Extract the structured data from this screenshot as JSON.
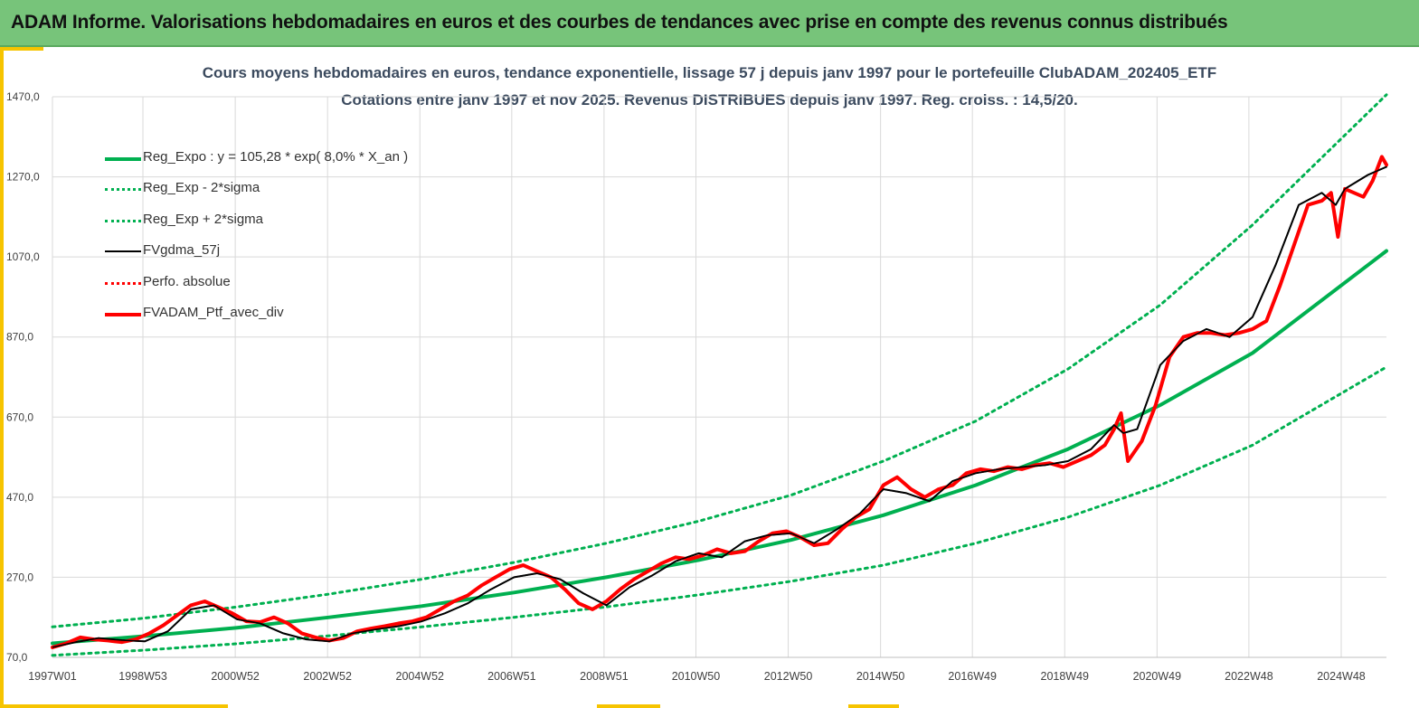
{
  "header": {
    "title": "ADAM Informe. Valorisations hebdomadaires en euros et des courbes de tendances avec prise en compte des revenus connus distribués"
  },
  "colors": {
    "banner": "#77c47a",
    "accent": "#f6c400",
    "green": "#00b050",
    "red": "#ff0000",
    "black": "#000000"
  },
  "chart_data": {
    "type": "line",
    "title": "Cours moyens hebdomadaires  en euros, tendance exponentielle, lissage 57 j depuis janv 1997 pour le portefeuille ClubADAM_202405_ETF",
    "subtitle": "Cotations  entre janv 1997 et nov 2025. Revenus DISTRIBUES depuis janv 1997. Reg. croiss. : 14,5/20.",
    "ylim": [
      70,
      1470
    ],
    "yticks": [
      "70,0",
      "270,0",
      "470,0",
      "670,0",
      "870,0",
      "1070,0",
      "1270,0",
      "1470,0"
    ],
    "xlim": [
      1997.0,
      2025.9
    ],
    "xticks": [
      {
        "x": 1997.0,
        "label": "1997W01"
      },
      {
        "x": 1998.96,
        "label": "1998W53"
      },
      {
        "x": 2000.96,
        "label": "2000W52"
      },
      {
        "x": 2002.96,
        "label": "2002W52"
      },
      {
        "x": 2004.96,
        "label": "2004W52"
      },
      {
        "x": 2006.95,
        "label": "2006W51"
      },
      {
        "x": 2008.95,
        "label": "2008W51"
      },
      {
        "x": 2010.94,
        "label": "2010W50"
      },
      {
        "x": 2012.94,
        "label": "2012W50"
      },
      {
        "x": 2014.94,
        "label": "2014W50"
      },
      {
        "x": 2016.93,
        "label": "2016W49"
      },
      {
        "x": 2018.93,
        "label": "2018W49"
      },
      {
        "x": 2020.93,
        "label": "2020W49"
      },
      {
        "x": 2022.92,
        "label": "2022W48"
      },
      {
        "x": 2024.92,
        "label": "2024W48"
      }
    ],
    "grid": true,
    "legend_position": "top-left",
    "series": [
      {
        "name": "Reg_Expo : y = 105,28 * exp( 8,0% *  X_an )",
        "style": "solid",
        "color": "#00b050",
        "width": 4,
        "x": [
          1997,
          1999,
          2001,
          2003,
          2005,
          2007,
          2009,
          2011,
          2013,
          2015,
          2017,
          2019,
          2021,
          2023,
          2025.9
        ],
        "values": [
          105,
          123,
          144,
          170,
          198,
          232,
          270,
          313,
          363,
          425,
          500,
          590,
          700,
          830,
          1085
        ]
      },
      {
        "name": "Reg_Exp - 2*sigma",
        "style": "dotted",
        "color": "#00b050",
        "width": 3,
        "x": [
          1997,
          1999,
          2001,
          2003,
          2005,
          2007,
          2009,
          2011,
          2013,
          2015,
          2017,
          2019,
          2021,
          2023,
          2025.9
        ],
        "values": [
          75,
          88,
          104,
          124,
          146,
          170,
          196,
          226,
          260,
          300,
          355,
          420,
          500,
          600,
          795
        ]
      },
      {
        "name": "Reg_Exp + 2*sigma",
        "style": "dotted",
        "color": "#00b050",
        "width": 3,
        "x": [
          1997,
          1999,
          2001,
          2003,
          2005,
          2007,
          2009,
          2011,
          2013,
          2015,
          2017,
          2019,
          2021,
          2023,
          2025.9
        ],
        "values": [
          146,
          168,
          196,
          228,
          265,
          307,
          355,
          410,
          475,
          560,
          660,
          790,
          950,
          1150,
          1475
        ]
      },
      {
        "name": "FVgdma_57j",
        "style": "solid",
        "color": "#000000",
        "width": 2,
        "x": [
          1997,
          1997.5,
          1998,
          1998.5,
          1999,
          1999.5,
          2000,
          2000.5,
          2001,
          2001.5,
          2002,
          2002.5,
          2003,
          2003.5,
          2004,
          2004.5,
          2005,
          2005.5,
          2006,
          2006.5,
          2007,
          2007.5,
          2008,
          2008.5,
          2009,
          2009.5,
          2010,
          2010.5,
          2011,
          2011.5,
          2012,
          2012.5,
          2013,
          2013.5,
          2014,
          2014.5,
          2015,
          2015.5,
          2016,
          2016.5,
          2017,
          2017.5,
          2018,
          2018.5,
          2019,
          2019.5,
          2020,
          2020.2,
          2020.5,
          2021,
          2021.5,
          2022,
          2022.5,
          2023,
          2023.5,
          2024,
          2024.5,
          2024.8,
          2025,
          2025.5,
          2025.9
        ],
        "values": [
          95,
          108,
          118,
          113,
          110,
          135,
          190,
          200,
          165,
          155,
          130,
          115,
          110,
          130,
          140,
          148,
          160,
          180,
          205,
          240,
          270,
          280,
          265,
          230,
          200,
          245,
          275,
          310,
          330,
          320,
          360,
          375,
          380,
          355,
          390,
          430,
          490,
          480,
          460,
          510,
          530,
          540,
          545,
          550,
          560,
          590,
          650,
          630,
          640,
          800,
          860,
          890,
          870,
          920,
          1050,
          1200,
          1230,
          1200,
          1240,
          1275,
          1295
        ]
      },
      {
        "name": "Perfo. absolue",
        "style": "dotted",
        "color": "#ff0000",
        "width": 3,
        "x": [],
        "values": []
      },
      {
        "name": "FVADAM_Ptf_avec_div",
        "style": "solid",
        "color": "#ff0000",
        "width": 4,
        "x": [
          1997,
          1997.3,
          1997.6,
          1997.9,
          1998.2,
          1998.5,
          1998.8,
          1999.1,
          1999.4,
          1999.7,
          2000,
          2000.3,
          2000.6,
          2000.9,
          2001.2,
          2001.5,
          2001.8,
          2002.1,
          2002.4,
          2002.7,
          2003,
          2003.3,
          2003.6,
          2003.9,
          2004.2,
          2004.5,
          2004.8,
          2005.1,
          2005.4,
          2005.7,
          2006,
          2006.3,
          2006.6,
          2006.9,
          2007.2,
          2007.5,
          2007.8,
          2008.1,
          2008.4,
          2008.7,
          2009,
          2009.3,
          2009.6,
          2009.9,
          2010.2,
          2010.5,
          2010.8,
          2011.1,
          2011.4,
          2011.7,
          2012,
          2012.3,
          2012.6,
          2012.9,
          2013.2,
          2013.5,
          2013.8,
          2014.1,
          2014.4,
          2014.7,
          2015,
          2015.3,
          2015.6,
          2015.9,
          2016.2,
          2016.5,
          2016.8,
          2017.1,
          2017.4,
          2017.7,
          2018,
          2018.3,
          2018.6,
          2018.9,
          2019.2,
          2019.5,
          2019.8,
          2020,
          2020.15,
          2020.3,
          2020.6,
          2020.9,
          2021.2,
          2021.5,
          2021.8,
          2022.1,
          2022.4,
          2022.7,
          2023,
          2023.3,
          2023.6,
          2023.9,
          2024.2,
          2024.5,
          2024.7,
          2024.85,
          2025,
          2025.2,
          2025.4,
          2025.6,
          2025.8,
          2025.9
        ],
        "values": [
          95,
          105,
          120,
          115,
          112,
          108,
          115,
          130,
          150,
          175,
          200,
          210,
          195,
          180,
          160,
          158,
          170,
          155,
          130,
          120,
          112,
          118,
          135,
          142,
          148,
          155,
          160,
          170,
          190,
          210,
          225,
          250,
          270,
          290,
          300,
          285,
          270,
          240,
          205,
          190,
          210,
          240,
          265,
          285,
          305,
          320,
          315,
          325,
          340,
          330,
          335,
          360,
          380,
          385,
          370,
          350,
          355,
          390,
          420,
          440,
          500,
          520,
          490,
          470,
          490,
          500,
          530,
          540,
          535,
          545,
          540,
          550,
          555,
          545,
          560,
          575,
          600,
          640,
          680,
          560,
          610,
          700,
          820,
          870,
          880,
          880,
          875,
          880,
          890,
          910,
          1000,
          1100,
          1200,
          1210,
          1230,
          1120,
          1240,
          1230,
          1220,
          1260,
          1320,
          1300
        ]
      }
    ]
  }
}
